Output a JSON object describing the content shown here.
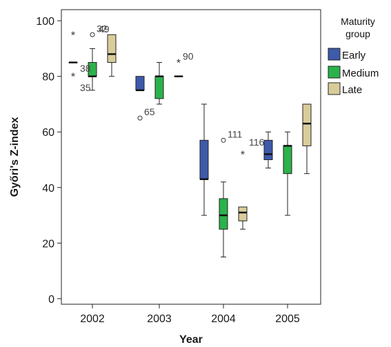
{
  "chart_data": {
    "type": "boxplot",
    "xlabel": "Year",
    "ylabel": "Győri's Z-index",
    "ylim": [
      -2,
      104
    ],
    "yticks": [
      0,
      20,
      40,
      60,
      80,
      100
    ],
    "categories": [
      "2002",
      "2003",
      "2004",
      "2005"
    ],
    "legend": {
      "title_lines": [
        "Maturity",
        "group"
      ],
      "position": "right"
    },
    "series": [
      {
        "name": "Early",
        "color": "#3d5aab",
        "boxes": [
          {
            "category": "2002",
            "min": 85,
            "q1": 85,
            "median": 85,
            "q3": 85,
            "max": 85,
            "outliers": [
              {
                "value": 95,
                "marker": "star",
                "label": ""
              },
              {
                "value": 80,
                "marker": "star",
                "label": ""
              }
            ]
          },
          {
            "category": "2003",
            "min": 75,
            "q1": 75,
            "median": 75,
            "q3": 80,
            "max": 80,
            "outliers": [
              {
                "value": 65,
                "marker": "circle",
                "label": "65"
              }
            ]
          },
          {
            "category": "2004",
            "min": 30,
            "q1": 43,
            "median": 43,
            "q3": 57,
            "max": 70,
            "outliers": []
          },
          {
            "category": "2005",
            "min": 47,
            "q1": 50,
            "median": 52,
            "q3": 57,
            "max": 60,
            "outliers": []
          }
        ]
      },
      {
        "name": "Medium",
        "color": "#2bb24c",
        "boxes": [
          {
            "category": "2002",
            "min": 75,
            "q1": 80,
            "median": 80,
            "q3": 85,
            "max": 90,
            "outliers": [
              {
                "value": 95,
                "marker": "circle",
                "label": "32"
              }
            ]
          },
          {
            "category": "2003",
            "min": 70,
            "q1": 72,
            "median": 80,
            "q3": 80,
            "max": 85,
            "outliers": []
          },
          {
            "category": "2004",
            "min": 15,
            "q1": 25,
            "median": 30,
            "q3": 36,
            "max": 42,
            "outliers": [
              {
                "value": 57,
                "marker": "circle",
                "label": "111"
              }
            ]
          },
          {
            "category": "2005",
            "min": 30,
            "q1": 45,
            "median": 55,
            "q3": 55,
            "max": 60,
            "outliers": []
          }
        ]
      },
      {
        "name": "Late",
        "color": "#d8cd9a",
        "boxes": [
          {
            "category": "2002",
            "min": 80,
            "q1": 85,
            "median": 88,
            "q3": 95,
            "max": 95,
            "outliers": []
          },
          {
            "category": "2003",
            "min": 80,
            "q1": 80,
            "median": 80,
            "q3": 80,
            "max": 80,
            "outliers": [
              {
                "value": 85,
                "marker": "star",
                "label": "90"
              }
            ]
          },
          {
            "category": "2004",
            "min": 25,
            "q1": 28,
            "median": 31,
            "q3": 33,
            "max": 33,
            "outliers": [
              {
                "value": 52,
                "marker": "star",
                "label": ""
              }
            ]
          },
          {
            "category": "2005",
            "min": 45,
            "q1": 55,
            "median": 63,
            "q3": 70,
            "max": 70,
            "outliers": []
          }
        ]
      }
    ],
    "extra_labels": [
      "49",
      "38",
      "35",
      "116"
    ]
  }
}
